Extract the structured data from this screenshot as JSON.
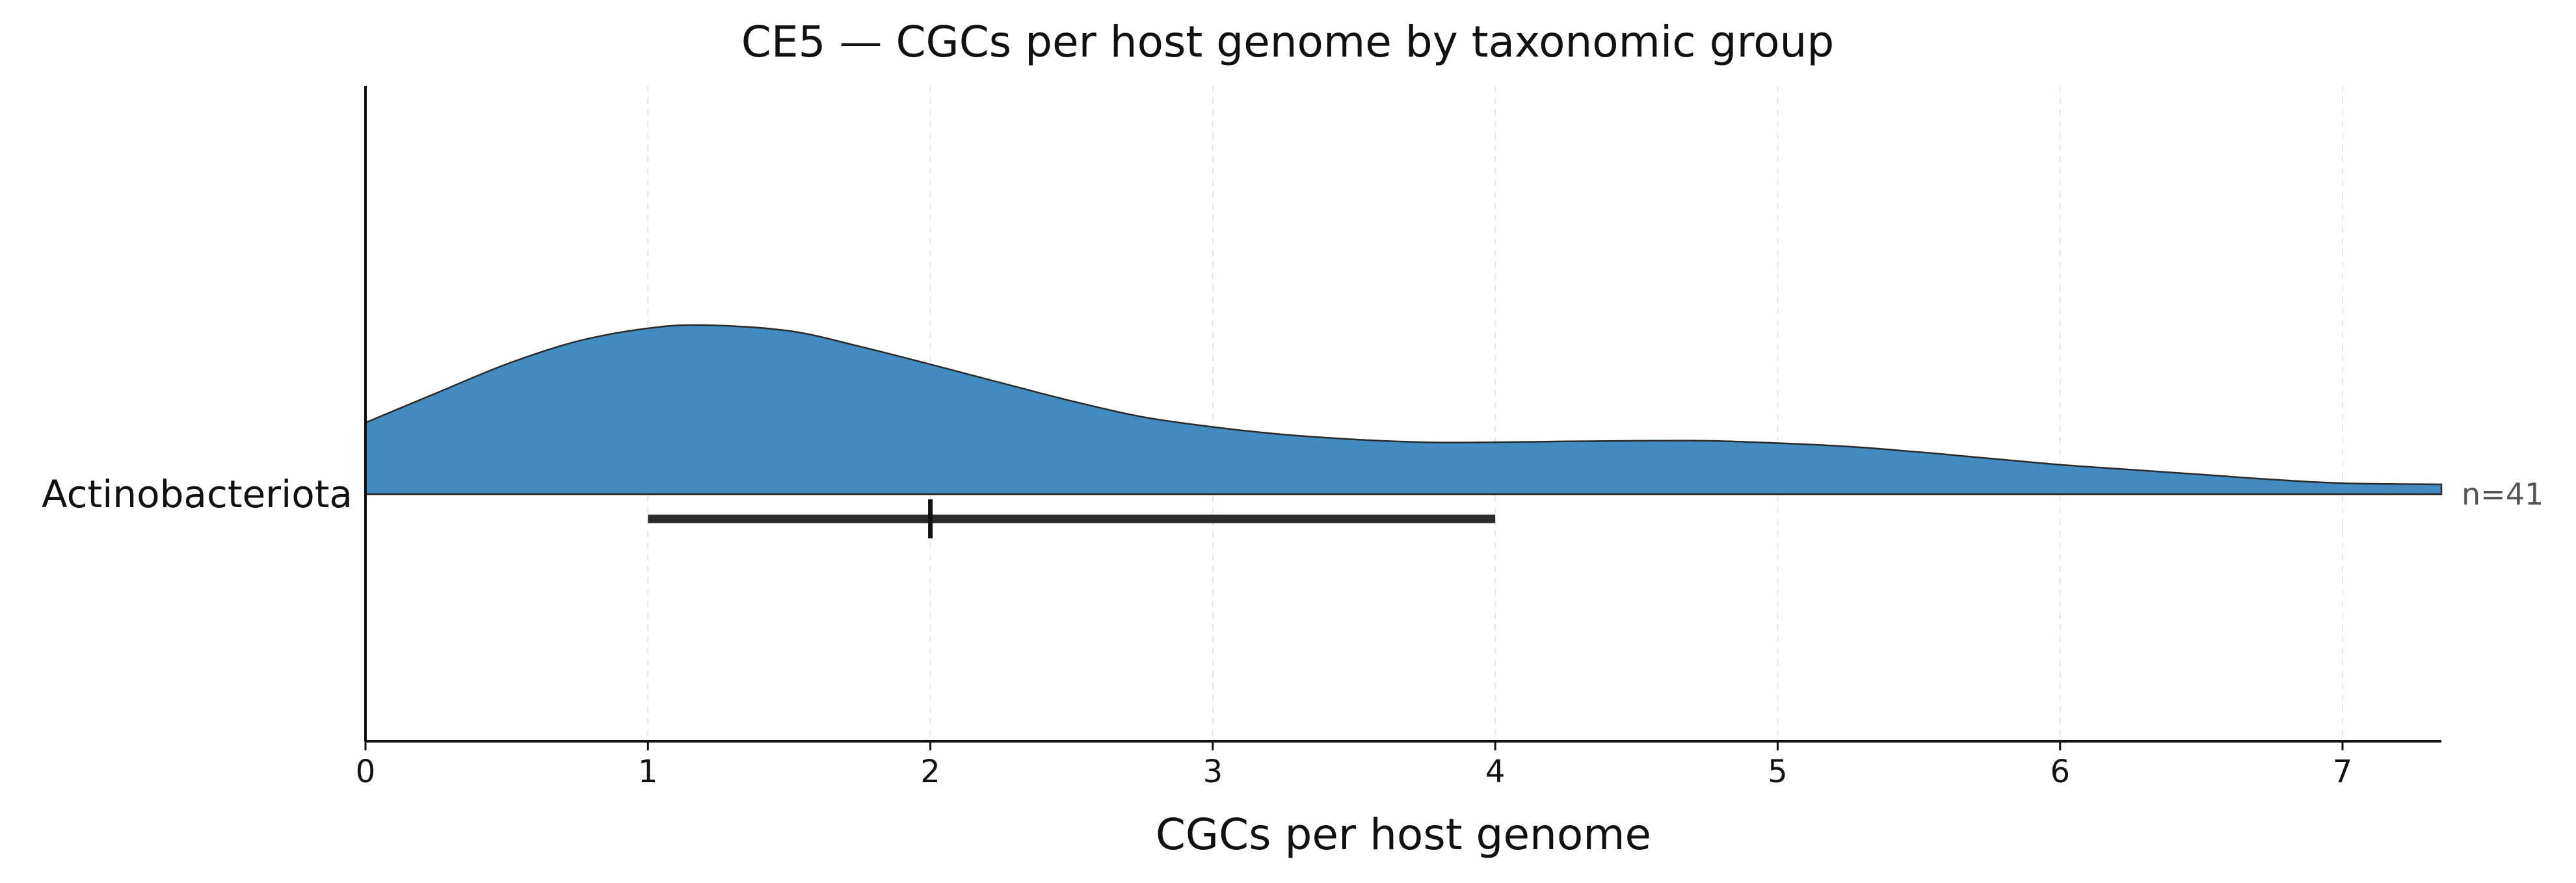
{
  "chart_data": {
    "type": "area",
    "title": "CE5 — CGCs per host genome by taxonomic group",
    "xlabel": "CGCs per host genome",
    "ylabel": "",
    "xlim": [
      0,
      7.35
    ],
    "x_ticks": [
      "0",
      "1",
      "2",
      "3",
      "4",
      "5",
      "6",
      "7"
    ],
    "grid": "vertical dashed",
    "categories": [
      "Actinobacteriota"
    ],
    "colors": {
      "fill": "#428bbf",
      "outline": "#2a2a2a",
      "summary_bar": "#2b2b2b",
      "grid": "#e6e6e6",
      "count_text": "#555555"
    },
    "series": [
      {
        "category": "Actinobacteriota",
        "count_label": "n=41",
        "density_x": [
          0,
          0.25,
          0.5,
          0.75,
          1.0,
          1.2,
          1.5,
          1.75,
          2.0,
          2.25,
          2.5,
          2.75,
          3.0,
          3.25,
          3.5,
          3.75,
          4.0,
          4.25,
          4.5,
          4.75,
          5.0,
          5.25,
          5.5,
          5.75,
          6.0,
          6.25,
          6.5,
          6.75,
          7.0,
          7.35
        ],
        "density_y": [
          0.248,
          0.35,
          0.451,
          0.53,
          0.575,
          0.586,
          0.566,
          0.512,
          0.45,
          0.386,
          0.323,
          0.268,
          0.233,
          0.207,
          0.19,
          0.18,
          0.18,
          0.183,
          0.185,
          0.185,
          0.177,
          0.165,
          0.146,
          0.124,
          0.102,
          0.085,
          0.068,
          0.051,
          0.038,
          0.034
        ],
        "density_ymax": 0.586,
        "q1": 1,
        "median": 2,
        "q3": 4
      }
    ]
  }
}
